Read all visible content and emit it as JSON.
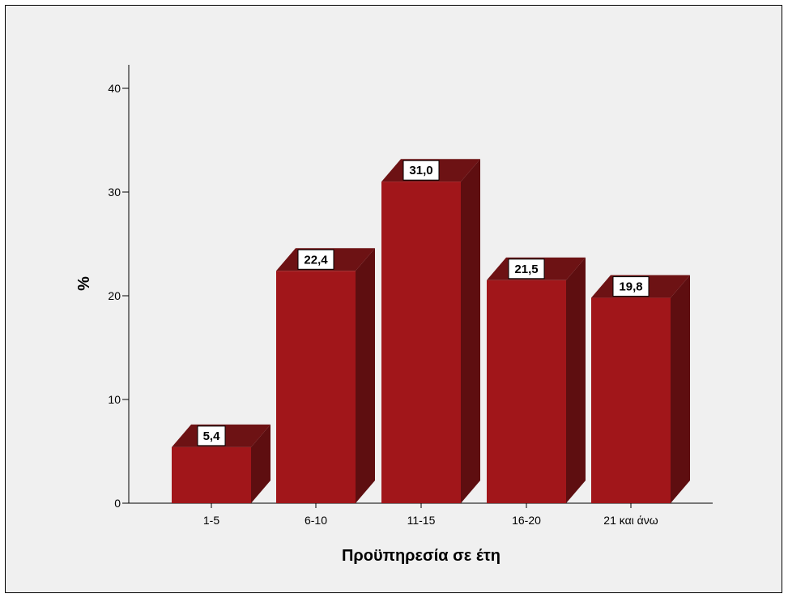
{
  "chart_data": {
    "type": "bar",
    "title": "",
    "xlabel": "Προϋπηρεσία σε έτη",
    "ylabel": "%",
    "categories": [
      "1-5",
      "6-10",
      "11-15",
      "16-20",
      "21 και άνω"
    ],
    "values": [
      5.4,
      22.4,
      31.0,
      21.5,
      19.8
    ],
    "value_labels": [
      "5,4",
      "22,4",
      "31,0",
      "21,5",
      "19,8"
    ],
    "ylim": [
      0,
      40
    ],
    "yticks": [
      0,
      10,
      20,
      30,
      40
    ],
    "ytick_labels": [
      "0",
      "10",
      "20",
      "30",
      "40"
    ],
    "grid": false,
    "bar_style": "3d",
    "colors": {
      "bar_front": "#a1161a",
      "bar_side": "#5e0e10",
      "bar_top": "#6d1214",
      "background": "#f0f0f0"
    }
  }
}
